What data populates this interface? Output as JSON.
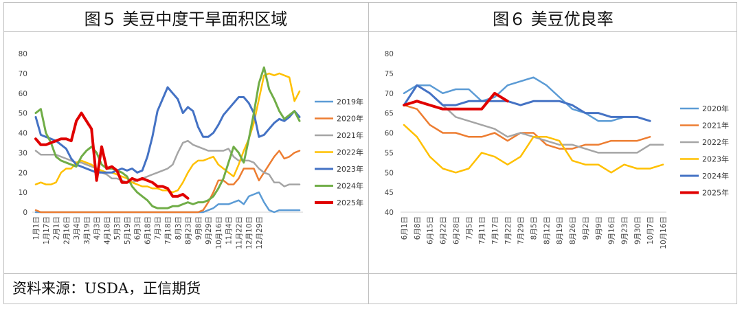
{
  "panel_left": {
    "title": "图５ 美豆中度干旱面积区域"
  },
  "panel_right": {
    "title": "图６ 美豆优良率"
  },
  "source": "资料来源：USDA，正信期货",
  "chart_data": [
    {
      "type": "line",
      "title": "图５ 美豆中度干旱面积区域",
      "ylim": [
        0,
        80
      ],
      "yticks": [
        0,
        10,
        20,
        30,
        40,
        50,
        60,
        70,
        80
      ],
      "legend_position": "right",
      "grid": false,
      "x_tick_labels": [
        "1月1日",
        "1月17日",
        "2月1日",
        "2月16日",
        "3月4日",
        "3月19日",
        "4月3日",
        "4月18日",
        "5月3日",
        "5月19日",
        "6月3日",
        "6月18日",
        "7月3日",
        "7月18日",
        "8月3日",
        "8月23日",
        "9月8日",
        "9月29日",
        "10月16日",
        "11月4日",
        "11月22日",
        "12月10日",
        "12月29日"
      ],
      "x_count": 53,
      "series": [
        {
          "name": "2019年",
          "color": "#5b9bd5",
          "width": 2.5,
          "x": [
            0,
            1,
            2,
            33,
            34,
            35,
            36,
            38,
            39,
            40,
            41,
            42,
            43,
            44,
            45,
            46,
            47,
            48,
            49,
            50,
            51,
            52
          ],
          "values": [
            0,
            0,
            0,
            0,
            1,
            2,
            4,
            4,
            5,
            6,
            4,
            8,
            9,
            10,
            5,
            1,
            0,
            1,
            1,
            1,
            1,
            1
          ]
        },
        {
          "name": "2020年",
          "color": "#ed7d31",
          "width": 2.5,
          "x": [
            0,
            1,
            2,
            10,
            20,
            30,
            31,
            32,
            33,
            34,
            35,
            36,
            37,
            38,
            39,
            40,
            41,
            42,
            43,
            44,
            45,
            46,
            47,
            48,
            49,
            50,
            51,
            52
          ],
          "values": [
            1,
            0,
            0,
            0,
            0,
            0,
            0,
            0,
            1,
            5,
            10,
            16,
            16,
            14,
            14,
            17,
            22,
            22,
            22,
            16,
            20,
            24,
            28,
            31,
            27,
            28,
            30,
            31
          ]
        },
        {
          "name": "2021年",
          "color": "#a5a5a5",
          "width": 2.5,
          "x": [
            0,
            1,
            2,
            3,
            4,
            5,
            6,
            7,
            8,
            9,
            10,
            11,
            12,
            13,
            14,
            15,
            16,
            17,
            18,
            19,
            20,
            21,
            22,
            23,
            24,
            25,
            26,
            27,
            28,
            29,
            30,
            31,
            32,
            33,
            34,
            35,
            36,
            37,
            38,
            39,
            40,
            41,
            42,
            43,
            44,
            45,
            46,
            47,
            48,
            49,
            50,
            51,
            52
          ],
          "values": [
            31,
            29,
            29,
            29,
            29,
            28,
            27,
            26,
            25,
            25,
            24,
            23,
            22,
            20,
            19,
            17,
            17,
            16,
            15,
            15,
            16,
            17,
            18,
            19,
            20,
            21,
            22,
            24,
            30,
            35,
            36,
            34,
            33,
            32,
            31,
            31,
            31,
            31,
            32,
            28,
            26,
            26,
            26,
            25,
            22,
            20,
            19,
            15,
            15,
            13,
            14,
            14,
            14
          ]
        },
        {
          "name": "2022年",
          "color": "#ffc000",
          "width": 2.5,
          "x": [
            0,
            1,
            2,
            3,
            4,
            5,
            6,
            7,
            8,
            9,
            10,
            11,
            12,
            13,
            14,
            15,
            16,
            17,
            18,
            19,
            20,
            21,
            22,
            23,
            24,
            25,
            26,
            27,
            28,
            29,
            30,
            31,
            32,
            33,
            34,
            35,
            36,
            37,
            38,
            39,
            40,
            41,
            42,
            43,
            44,
            45,
            46,
            47,
            48,
            49,
            50,
            51,
            52
          ],
          "values": [
            14,
            15,
            14,
            14,
            15,
            20,
            22,
            22,
            25,
            26,
            25,
            24,
            22,
            21,
            20,
            20,
            19,
            18,
            17,
            15,
            14,
            13,
            13,
            12,
            12,
            11,
            11,
            10,
            11,
            15,
            20,
            24,
            26,
            26,
            27,
            28,
            24,
            22,
            20,
            18,
            24,
            31,
            37,
            45,
            57,
            69,
            70,
            69,
            70,
            69,
            68,
            56,
            61
          ]
        },
        {
          "name": "2023年",
          "color": "#4472c4",
          "width": 3,
          "x": [
            0,
            1,
            2,
            3,
            4,
            5,
            6,
            7,
            8,
            9,
            10,
            11,
            12,
            13,
            14,
            15,
            16,
            17,
            18,
            19,
            20,
            21,
            22,
            23,
            24,
            25,
            26,
            27,
            28,
            29,
            30,
            31,
            32,
            33,
            34,
            35,
            36,
            37,
            38,
            39,
            40,
            41,
            42,
            43,
            44,
            45,
            46,
            47,
            48,
            49,
            50,
            51,
            52
          ],
          "values": [
            48,
            39,
            38,
            37,
            36,
            34,
            32,
            27,
            24,
            23,
            22,
            21,
            20,
            20,
            20,
            20,
            21,
            22,
            21,
            22,
            20,
            21,
            28,
            38,
            51,
            57,
            63,
            60,
            57,
            50,
            53,
            51,
            43,
            38,
            38,
            40,
            44,
            49,
            52,
            55,
            58,
            58,
            55,
            50,
            38,
            39,
            42,
            45,
            47,
            46,
            48,
            51,
            48
          ]
        },
        {
          "name": "2024年",
          "color": "#70ad47",
          "width": 3,
          "x": [
            0,
            1,
            2,
            3,
            4,
            5,
            6,
            7,
            8,
            9,
            10,
            11,
            12,
            13,
            14,
            15,
            16,
            17,
            18,
            19,
            20,
            21,
            22,
            23,
            24,
            25,
            26,
            27,
            28,
            29,
            30,
            31,
            32,
            33,
            34,
            35,
            36,
            37,
            38,
            39,
            40,
            41,
            42,
            43,
            44,
            45,
            46,
            47,
            48,
            49,
            50,
            51,
            52
          ],
          "values": [
            50,
            52,
            40,
            35,
            28,
            26,
            25,
            24,
            23,
            28,
            31,
            33,
            30,
            24,
            22,
            22,
            21,
            20,
            18,
            13,
            10,
            8,
            6,
            3,
            2,
            2,
            2,
            3,
            3,
            4,
            5,
            4,
            5,
            5,
            6,
            8,
            12,
            17,
            25,
            33,
            30,
            25,
            37,
            50,
            65,
            73,
            62,
            57,
            51,
            47,
            49,
            51,
            46
          ]
        },
        {
          "name": "2025年",
          "color": "#e00000",
          "width": 4,
          "x": [
            0,
            1,
            2,
            3,
            4,
            5,
            6,
            7,
            8,
            9,
            10,
            11,
            12,
            13,
            14,
            15,
            16,
            17,
            18,
            19,
            20,
            21,
            22,
            23,
            24,
            25,
            26,
            27,
            28,
            29,
            30
          ],
          "values": [
            37,
            34,
            34,
            35,
            36,
            37,
            37,
            36,
            46,
            50,
            46,
            42,
            16,
            33,
            22,
            23,
            21,
            15,
            15,
            17,
            16,
            17,
            16,
            15,
            13,
            13,
            12,
            8,
            8,
            9,
            7
          ]
        }
      ]
    },
    {
      "type": "line",
      "title": "图６ 美豆优良率",
      "ylim": [
        40,
        80
      ],
      "yticks": [
        40,
        45,
        50,
        55,
        60,
        65,
        70,
        75,
        80
      ],
      "legend_position": "right",
      "grid": false,
      "x_tick_labels": [
        "6月1日",
        "6月8日",
        "6月15日",
        "6月22日",
        "6月28日",
        "7月5日",
        "7月11日",
        "7月17日",
        "7月22日",
        "7月29日",
        "8月5日",
        "8月12日",
        "8月19日",
        "8月26日",
        "9月2日",
        "9月9日",
        "9月16日",
        "9月23日",
        "9月30日",
        "10月7日",
        "10月16日"
      ],
      "x_count": 21,
      "series": [
        {
          "name": "2020年",
          "color": "#5b9bd5",
          "width": 2.5,
          "x": [
            0,
            1,
            2,
            3,
            4,
            5,
            6,
            7,
            8,
            9,
            10,
            11,
            12,
            13,
            14,
            15,
            16,
            17,
            18,
            19
          ],
          "values": [
            70,
            72,
            72,
            70,
            71,
            71,
            68,
            69,
            72,
            73,
            74,
            72,
            69,
            66,
            65,
            63,
            63,
            64,
            64,
            63
          ]
        },
        {
          "name": "2021年",
          "color": "#ed7d31",
          "width": 2.5,
          "x": [
            0,
            1,
            2,
            3,
            4,
            5,
            6,
            7,
            8,
            9,
            10,
            11,
            12,
            13,
            14,
            15,
            16,
            17,
            18,
            19
          ],
          "values": [
            67,
            66,
            62,
            60,
            60,
            59,
            59,
            60,
            58,
            60,
            60,
            57,
            56,
            56,
            57,
            57,
            58,
            58,
            58,
            59
          ]
        },
        {
          "name": "2022年",
          "color": "#a5a5a5",
          "width": 2.5,
          "x": [
            2,
            3,
            4,
            5,
            6,
            7,
            8,
            9,
            10,
            11,
            12,
            13,
            14,
            15,
            16,
            17,
            18,
            19,
            20
          ],
          "values": [
            70,
            67,
            64,
            63,
            62,
            61,
            59,
            60,
            59,
            58,
            57,
            57,
            56,
            55,
            55,
            55,
            55,
            57,
            57
          ]
        },
        {
          "name": "2023年",
          "color": "#ffc000",
          "width": 2.5,
          "x": [
            0,
            1,
            2,
            3,
            4,
            5,
            6,
            7,
            8,
            9,
            10,
            11,
            12,
            13,
            14,
            15,
            16,
            17,
            18,
            19,
            20
          ],
          "values": [
            62,
            59,
            54,
            51,
            50,
            51,
            55,
            54,
            52,
            54,
            59,
            59,
            58,
            53,
            52,
            52,
            50,
            52,
            51,
            51,
            52
          ]
        },
        {
          "name": "2024年",
          "color": "#4472c4",
          "width": 3,
          "x": [
            0,
            1,
            2,
            3,
            4,
            5,
            6,
            7,
            8,
            9,
            10,
            11,
            12,
            13,
            14,
            15,
            16,
            17,
            18,
            19
          ],
          "values": [
            67,
            72,
            70,
            67,
            67,
            68,
            68,
            68,
            68,
            67,
            68,
            68,
            68,
            67,
            65,
            65,
            64,
            64,
            64,
            63
          ]
        },
        {
          "name": "2025年",
          "color": "#e00000",
          "width": 4,
          "x": [
            0,
            1,
            2,
            3,
            4,
            5,
            6,
            7,
            8
          ],
          "values": [
            67,
            68,
            67,
            66,
            66,
            66,
            66,
            70,
            68
          ]
        }
      ]
    }
  ]
}
